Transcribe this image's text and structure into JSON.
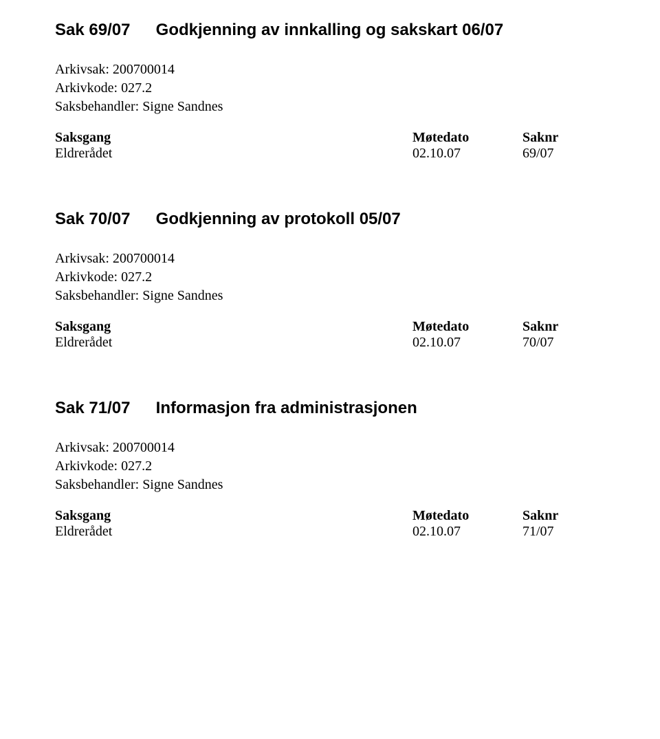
{
  "cases": [
    {
      "number": "Sak 69/07",
      "title": "Godkjenning av innkalling og sakskart 06/07",
      "arkivsak": "Arkivsak: 200700014",
      "arkivkode": "Arkivkode: 027.2",
      "saksbehandler": "Saksbehandler: Signe Sandnes",
      "headers": {
        "col1": "Saksgang",
        "col2": "Møtedato",
        "col3": "Saknr"
      },
      "row": {
        "col1": "Eldrerådet",
        "col2": "02.10.07",
        "col3": "69/07"
      }
    },
    {
      "number": "Sak 70/07",
      "title": "Godkjenning av protokoll 05/07",
      "arkivsak": "Arkivsak: 200700014",
      "arkivkode": "Arkivkode: 027.2",
      "saksbehandler": "Saksbehandler: Signe Sandnes",
      "headers": {
        "col1": "Saksgang",
        "col2": "Møtedato",
        "col3": "Saknr"
      },
      "row": {
        "col1": "Eldrerådet",
        "col2": "02.10.07",
        "col3": "70/07"
      }
    },
    {
      "number": "Sak 71/07",
      "title": "Informasjon fra administrasjonen",
      "arkivsak": "Arkivsak: 200700014",
      "arkivkode": "Arkivkode: 027.2",
      "saksbehandler": "Saksbehandler: Signe Sandnes",
      "headers": {
        "col1": "Saksgang",
        "col2": "Møtedato",
        "col3": "Saknr"
      },
      "row": {
        "col1": "Eldrerådet",
        "col2": "02.10.07",
        "col3": "71/07"
      }
    }
  ]
}
